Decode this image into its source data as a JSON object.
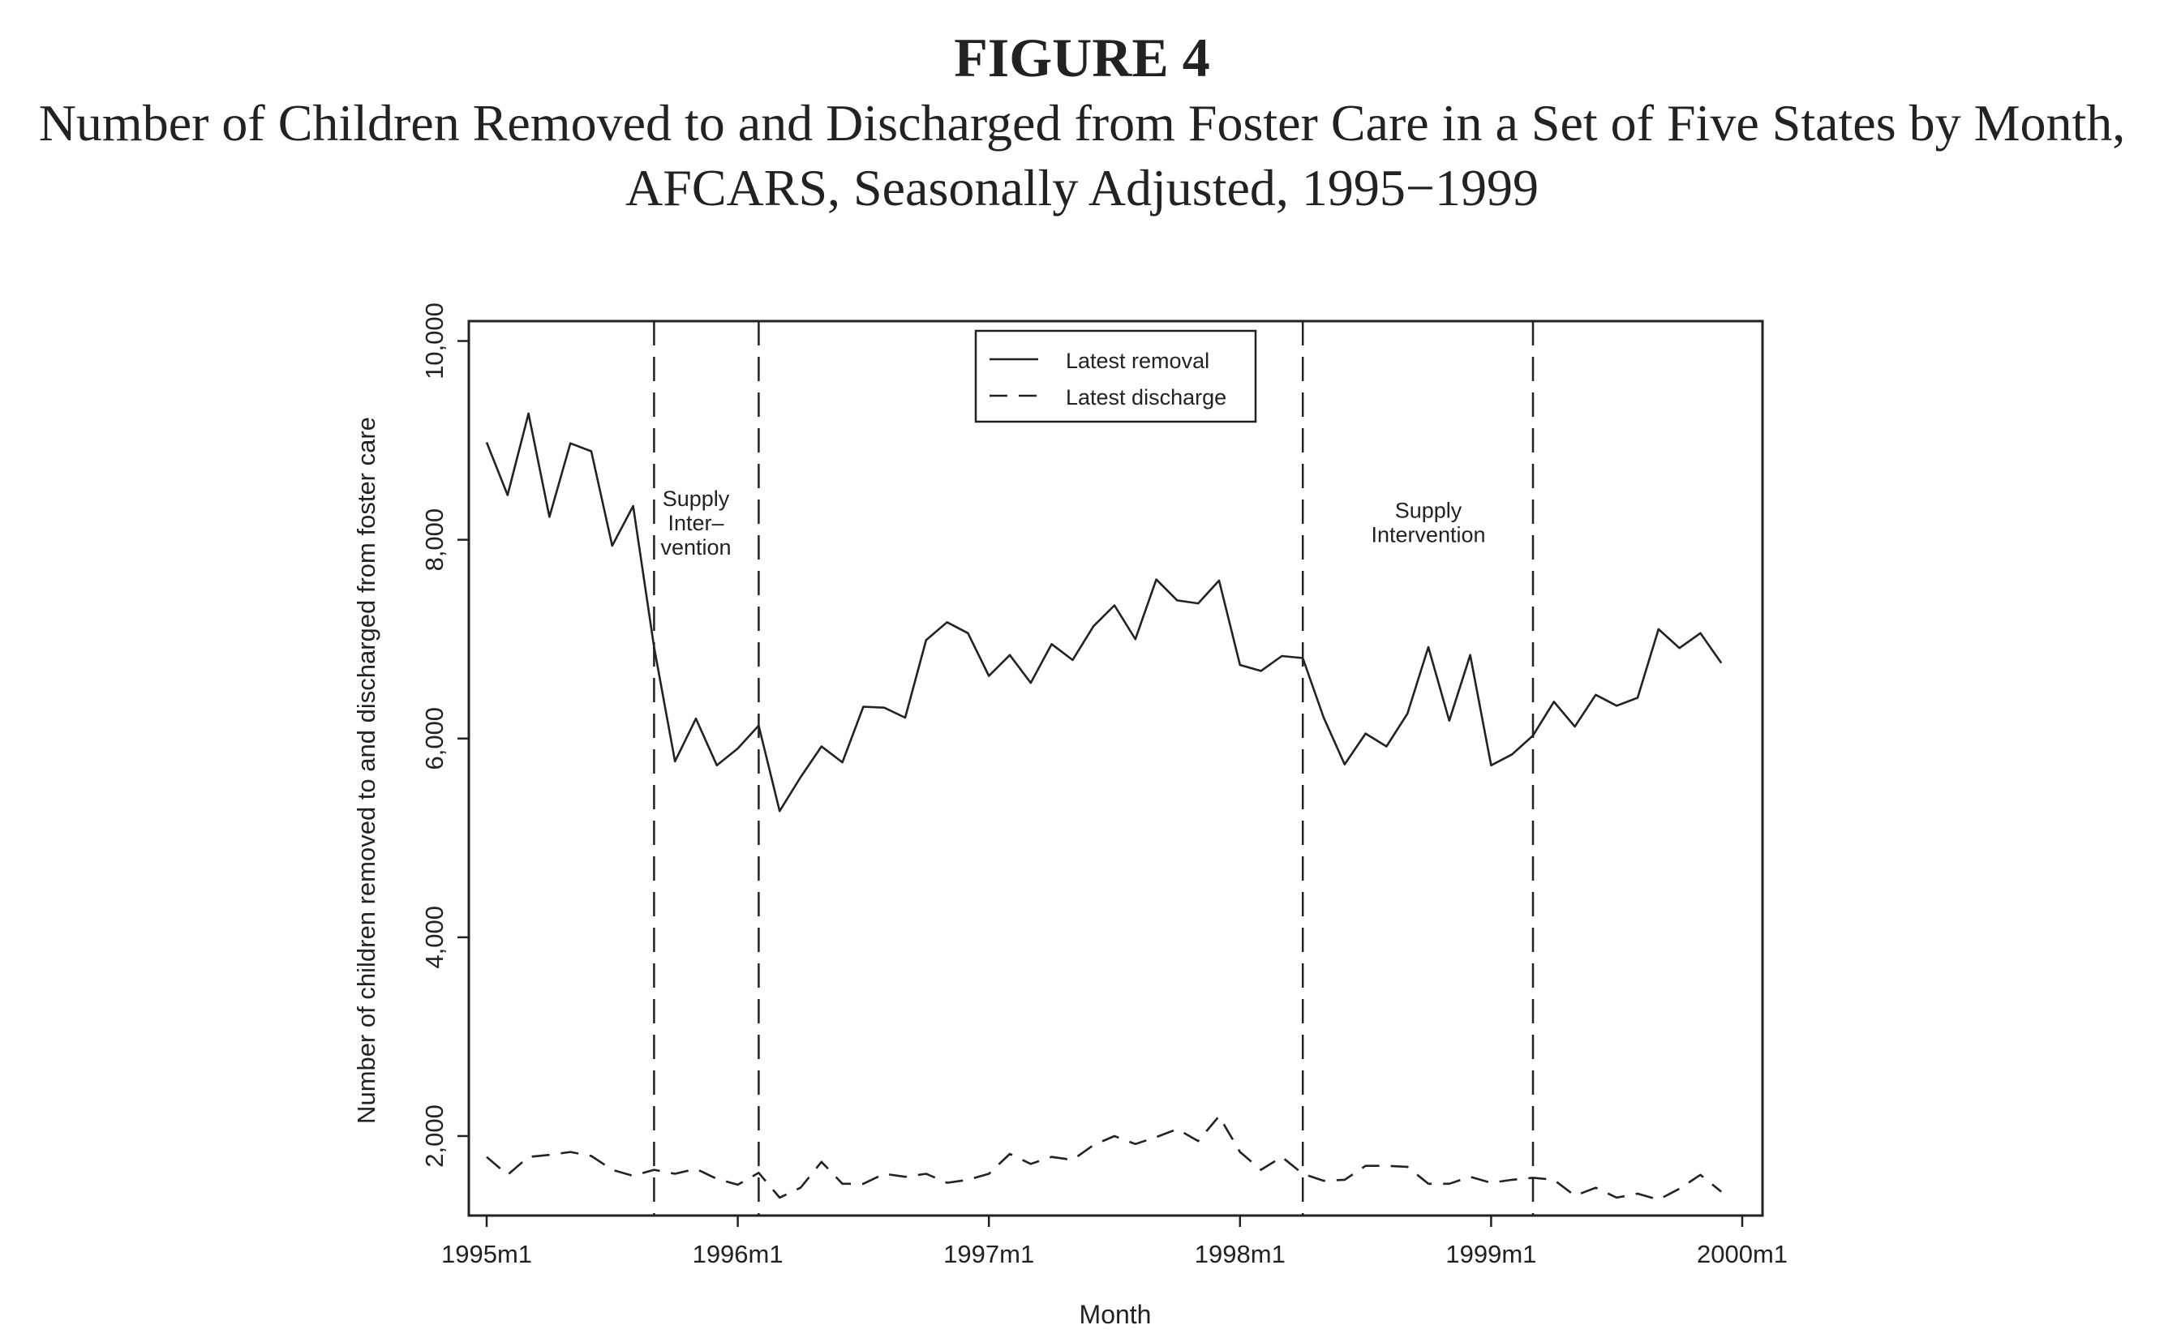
{
  "figure": {
    "label": "FIGURE 4",
    "title": "Number of Children Removed to and Discharged from Foster Care in a Set of Five States by Month, AFCARS, Seasonally Adjusted, 1995−1999"
  },
  "chart_data": {
    "type": "line",
    "title": "Number of Children Removed to and Discharged from Foster Care in a Set of Five States by Month, AFCARS, Seasonally Adjusted, 1995−1999",
    "xlabel": "Month",
    "ylabel": "Number of children removed to and discharged from foster care",
    "x_ticks": [
      "1995m1",
      "1996m1",
      "1997m1",
      "1998m1",
      "1999m1",
      "2000m1"
    ],
    "y_ticks": [
      "2,000",
      "4,000",
      "6,000",
      "8,000",
      "10,000"
    ],
    "y_tick_values": [
      2000,
      4000,
      6000,
      8000,
      10000
    ],
    "xlim": [
      "1994-12",
      "2000-01"
    ],
    "ylim": [
      1200,
      10200
    ],
    "grid": false,
    "legend": {
      "position": "top-center",
      "entries": [
        {
          "label": "Latest removal",
          "style": "solid"
        },
        {
          "label": "Latest discharge",
          "style": "dashed"
        }
      ]
    },
    "intervention_lines": [
      "1995-09",
      "1996-02",
      "1998-04",
      "1999-03"
    ],
    "annotations": [
      {
        "text": [
          "Supply",
          "Inter–",
          "vention"
        ],
        "x": "1995-11",
        "y": 8340
      },
      {
        "text": [
          "Supply",
          "Intervention"
        ],
        "x": "1998-10",
        "y": 8220
      }
    ],
    "x": [
      "1995-01",
      "1995-02",
      "1995-03",
      "1995-04",
      "1995-05",
      "1995-06",
      "1995-07",
      "1995-08",
      "1995-09",
      "1995-10",
      "1995-11",
      "1995-12",
      "1996-01",
      "1996-02",
      "1996-03",
      "1996-04",
      "1996-05",
      "1996-06",
      "1996-07",
      "1996-08",
      "1996-09",
      "1996-10",
      "1996-11",
      "1996-12",
      "1997-01",
      "1997-02",
      "1997-03",
      "1997-04",
      "1997-05",
      "1997-06",
      "1997-07",
      "1997-08",
      "1997-09",
      "1997-10",
      "1997-11",
      "1997-12",
      "1998-01",
      "1998-02",
      "1998-03",
      "1998-04",
      "1998-05",
      "1998-06",
      "1998-07",
      "1998-08",
      "1998-09",
      "1998-10",
      "1998-11",
      "1998-12",
      "1999-01",
      "1999-02",
      "1999-03",
      "1999-04",
      "1999-05",
      "1999-06",
      "1999-07",
      "1999-08",
      "1999-09",
      "1999-10",
      "1999-11",
      "1999-12"
    ],
    "series": [
      {
        "name": "Latest removal",
        "style": "solid",
        "values": [
          8980,
          8450,
          9270,
          8230,
          8970,
          8890,
          7940,
          8340,
          6920,
          5770,
          6200,
          5730,
          5900,
          6130,
          5270,
          5610,
          5920,
          5760,
          6320,
          6310,
          6210,
          6990,
          7170,
          7060,
          6630,
          6840,
          6560,
          6950,
          6790,
          7130,
          7340,
          7000,
          7600,
          7390,
          7360,
          7590,
          6740,
          6680,
          6830,
          6810,
          6210,
          5740,
          6050,
          5920,
          6250,
          6920,
          6180,
          6840,
          5730,
          5840,
          6030,
          6370,
          6120,
          6440,
          6330,
          6410,
          7100,
          6910,
          7060,
          6760
        ]
      },
      {
        "name": "Latest discharge",
        "style": "dashed",
        "values": [
          1790,
          1610,
          1790,
          1810,
          1840,
          1800,
          1660,
          1600,
          1660,
          1620,
          1670,
          1570,
          1510,
          1630,
          1380,
          1480,
          1740,
          1520,
          1520,
          1620,
          1590,
          1620,
          1530,
          1560,
          1620,
          1820,
          1720,
          1790,
          1760,
          1910,
          2000,
          1920,
          1990,
          2070,
          1950,
          2200,
          1840,
          1660,
          1790,
          1620,
          1550,
          1560,
          1700,
          1700,
          1690,
          1520,
          1520,
          1590,
          1530,
          1560,
          1580,
          1560,
          1400,
          1480,
          1380,
          1420,
          1360,
          1470,
          1610,
          1440
        ]
      }
    ]
  }
}
